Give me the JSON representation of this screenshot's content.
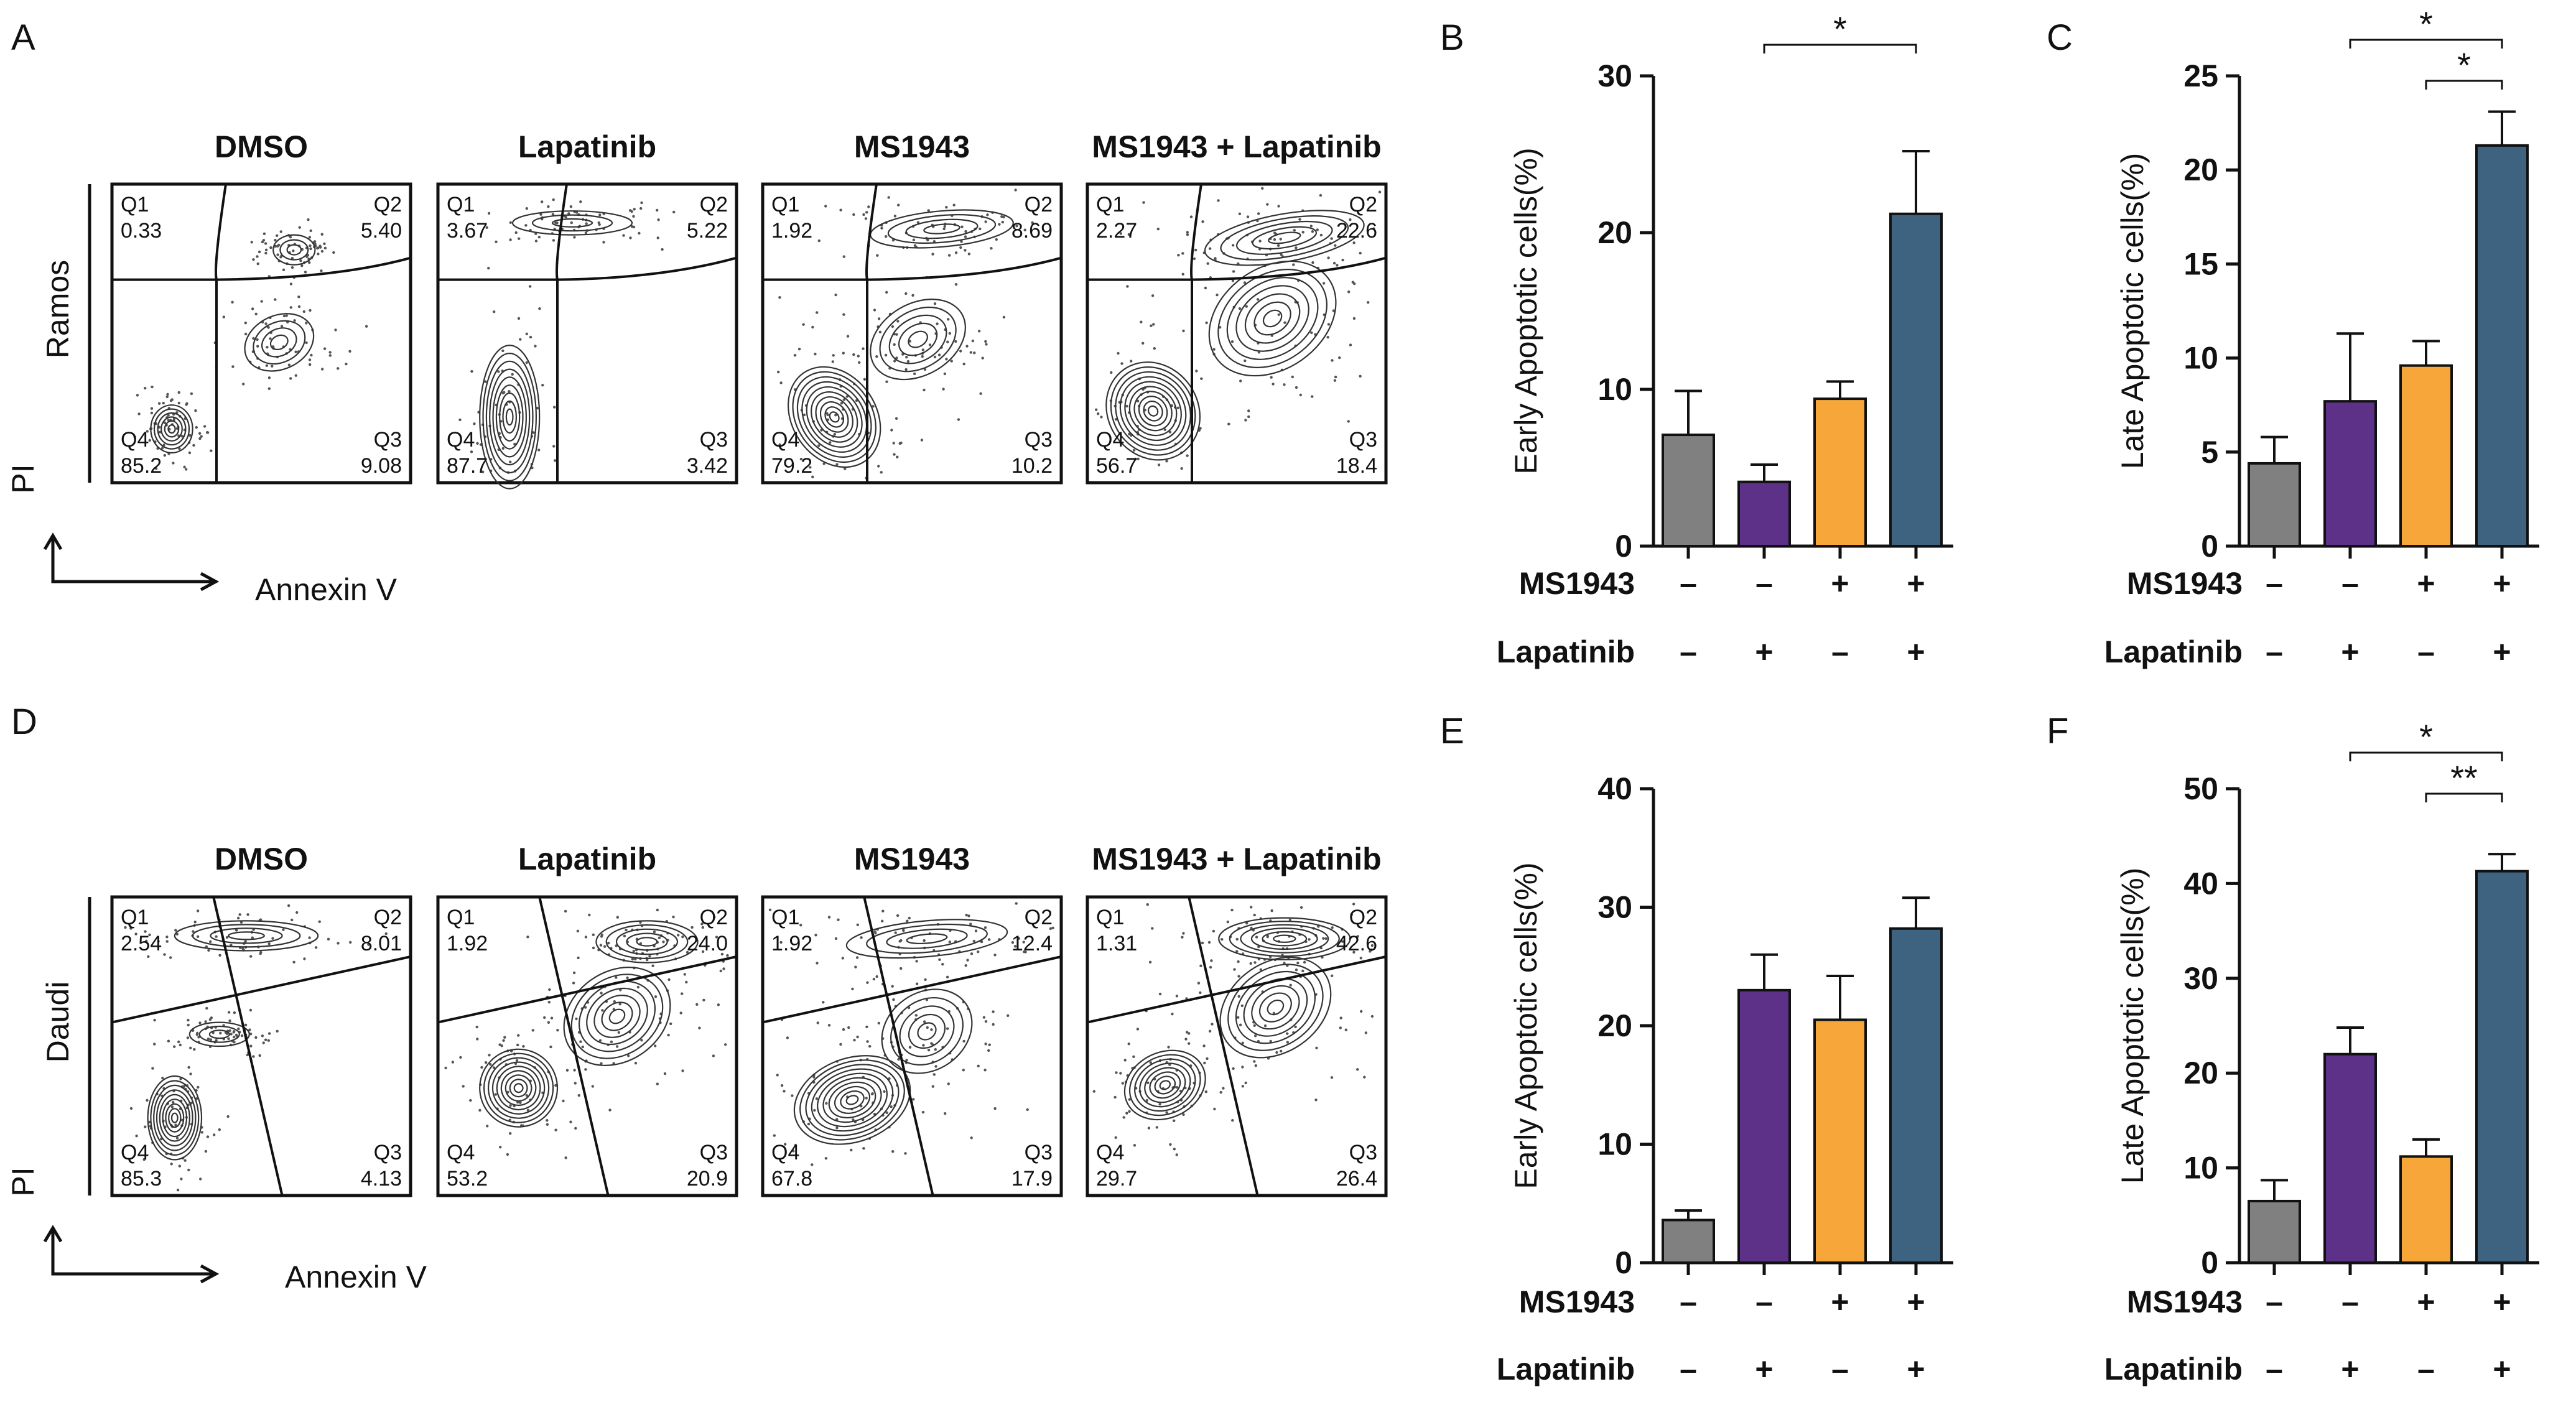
{
  "colors": {
    "dmso": "#808080",
    "lapatinib": "#5c3187",
    "ms1943": "#f7a73a",
    "combo": "#3d6380",
    "dots": "#555555"
  },
  "axis_labels": {
    "pi": "PI",
    "annexin": "Annexin V"
  },
  "flow_panels": [
    {
      "letter": "A",
      "cell_line": "Ramos",
      "gate_style": "ramos",
      "conditions": [
        {
          "title": "DMSO",
          "quadrants": [
            {
              "label": "Q1",
              "value": "0.33"
            },
            {
              "label": "Q2",
              "value": "5.40"
            },
            {
              "label": "Q3",
              "value": "9.08"
            },
            {
              "label": "Q4",
              "value": "85.2"
            }
          ]
        },
        {
          "title": "Lapatinib",
          "quadrants": [
            {
              "label": "Q1",
              "value": "3.67"
            },
            {
              "label": "Q2",
              "value": "5.22"
            },
            {
              "label": "Q3",
              "value": "3.42"
            },
            {
              "label": "Q4",
              "value": "87.7"
            }
          ]
        },
        {
          "title": "MS1943",
          "quadrants": [
            {
              "label": "Q1",
              "value": "1.92"
            },
            {
              "label": "Q2",
              "value": "8.69"
            },
            {
              "label": "Q3",
              "value": "10.2"
            },
            {
              "label": "Q4",
              "value": "79.2"
            }
          ]
        },
        {
          "title": "MS1943 + Lapatinib",
          "quadrants": [
            {
              "label": "Q1",
              "value": "2.27"
            },
            {
              "label": "Q2",
              "value": "22.6"
            },
            {
              "label": "Q3",
              "value": "18.4"
            },
            {
              "label": "Q4",
              "value": "56.7"
            }
          ]
        }
      ]
    },
    {
      "letter": "D",
      "cell_line": "Daudi",
      "gate_style": "daudi",
      "conditions": [
        {
          "title": "DMSO",
          "quadrants": [
            {
              "label": "Q1",
              "value": "2.54"
            },
            {
              "label": "Q2",
              "value": "8.01"
            },
            {
              "label": "Q3",
              "value": "4.13"
            },
            {
              "label": "Q4",
              "value": "85.3"
            }
          ]
        },
        {
          "title": "Lapatinib",
          "quadrants": [
            {
              "label": "Q1",
              "value": "1.92"
            },
            {
              "label": "Q2",
              "value": "24.0"
            },
            {
              "label": "Q3",
              "value": "20.9"
            },
            {
              "label": "Q4",
              "value": "53.2"
            }
          ]
        },
        {
          "title": "MS1943",
          "quadrants": [
            {
              "label": "Q1",
              "value": "1.92"
            },
            {
              "label": "Q2",
              "value": "12.4"
            },
            {
              "label": "Q3",
              "value": "17.9"
            },
            {
              "label": "Q4",
              "value": "67.8"
            }
          ]
        },
        {
          "title": "MS1943 + Lapatinib",
          "quadrants": [
            {
              "label": "Q1",
              "value": "1.31"
            },
            {
              "label": "Q2",
              "value": "42.6"
            },
            {
              "label": "Q3",
              "value": "26.4"
            },
            {
              "label": "Q4",
              "value": "29.7"
            }
          ]
        }
      ]
    }
  ],
  "treatment_rows": [
    {
      "label": "MS1943",
      "signs": [
        "–",
        "–",
        "+",
        "+"
      ]
    },
    {
      "label": "Lapatinib",
      "signs": [
        "–",
        "+",
        "–",
        "+"
      ]
    }
  ],
  "chart_data": [
    {
      "panel": "B",
      "type": "bar",
      "title": "",
      "ylabel": "Early Apoptotic cells(%)",
      "ylim": [
        0,
        30
      ],
      "yticks": [
        0,
        10,
        20,
        30
      ],
      "categories": [
        "DMSO",
        "Lapatinib",
        "MS1943",
        "MS1943 + Lapatinib"
      ],
      "values": [
        7.1,
        4.1,
        9.4,
        21.2
      ],
      "errors": [
        2.8,
        1.1,
        1.1,
        4.0
      ],
      "significance": [
        {
          "from": 1,
          "to": 3,
          "label": "*"
        }
      ]
    },
    {
      "panel": "C",
      "type": "bar",
      "title": "",
      "ylabel": "Late Apoptotic cells(%)",
      "ylim": [
        0,
        25
      ],
      "yticks": [
        0,
        5,
        10,
        15,
        20,
        25
      ],
      "categories": [
        "DMSO",
        "Lapatinib",
        "MS1943",
        "MS1943 + Lapatinib"
      ],
      "values": [
        4.4,
        7.7,
        9.6,
        21.3
      ],
      "errors": [
        1.4,
        3.6,
        1.3,
        1.8
      ],
      "significance": [
        {
          "from": 1,
          "to": 3,
          "label": "*"
        },
        {
          "from": 2,
          "to": 3,
          "label": "*"
        }
      ]
    },
    {
      "panel": "E",
      "type": "bar",
      "title": "",
      "ylabel": "Early Apoptotic cells(%)",
      "ylim": [
        0,
        40
      ],
      "yticks": [
        0,
        10,
        20,
        30,
        40
      ],
      "categories": [
        "DMSO",
        "Lapatinib",
        "MS1943",
        "MS1943 + Lapatinib"
      ],
      "values": [
        3.6,
        23.0,
        20.5,
        28.2
      ],
      "errors": [
        0.8,
        3.0,
        3.7,
        2.6
      ],
      "significance": []
    },
    {
      "panel": "F",
      "type": "bar",
      "title": "",
      "ylabel": "Late Apoptotic cells(%)",
      "ylim": [
        0,
        50
      ],
      "yticks": [
        0,
        10,
        20,
        30,
        40,
        50
      ],
      "categories": [
        "DMSO",
        "Lapatinib",
        "MS1943",
        "MS1943 + Lapatinib"
      ],
      "values": [
        6.5,
        22.0,
        11.2,
        41.3
      ],
      "errors": [
        2.2,
        2.8,
        1.8,
        1.8
      ],
      "significance": [
        {
          "from": 1,
          "to": 3,
          "label": "*"
        },
        {
          "from": 2,
          "to": 3,
          "label": "**"
        }
      ]
    }
  ]
}
